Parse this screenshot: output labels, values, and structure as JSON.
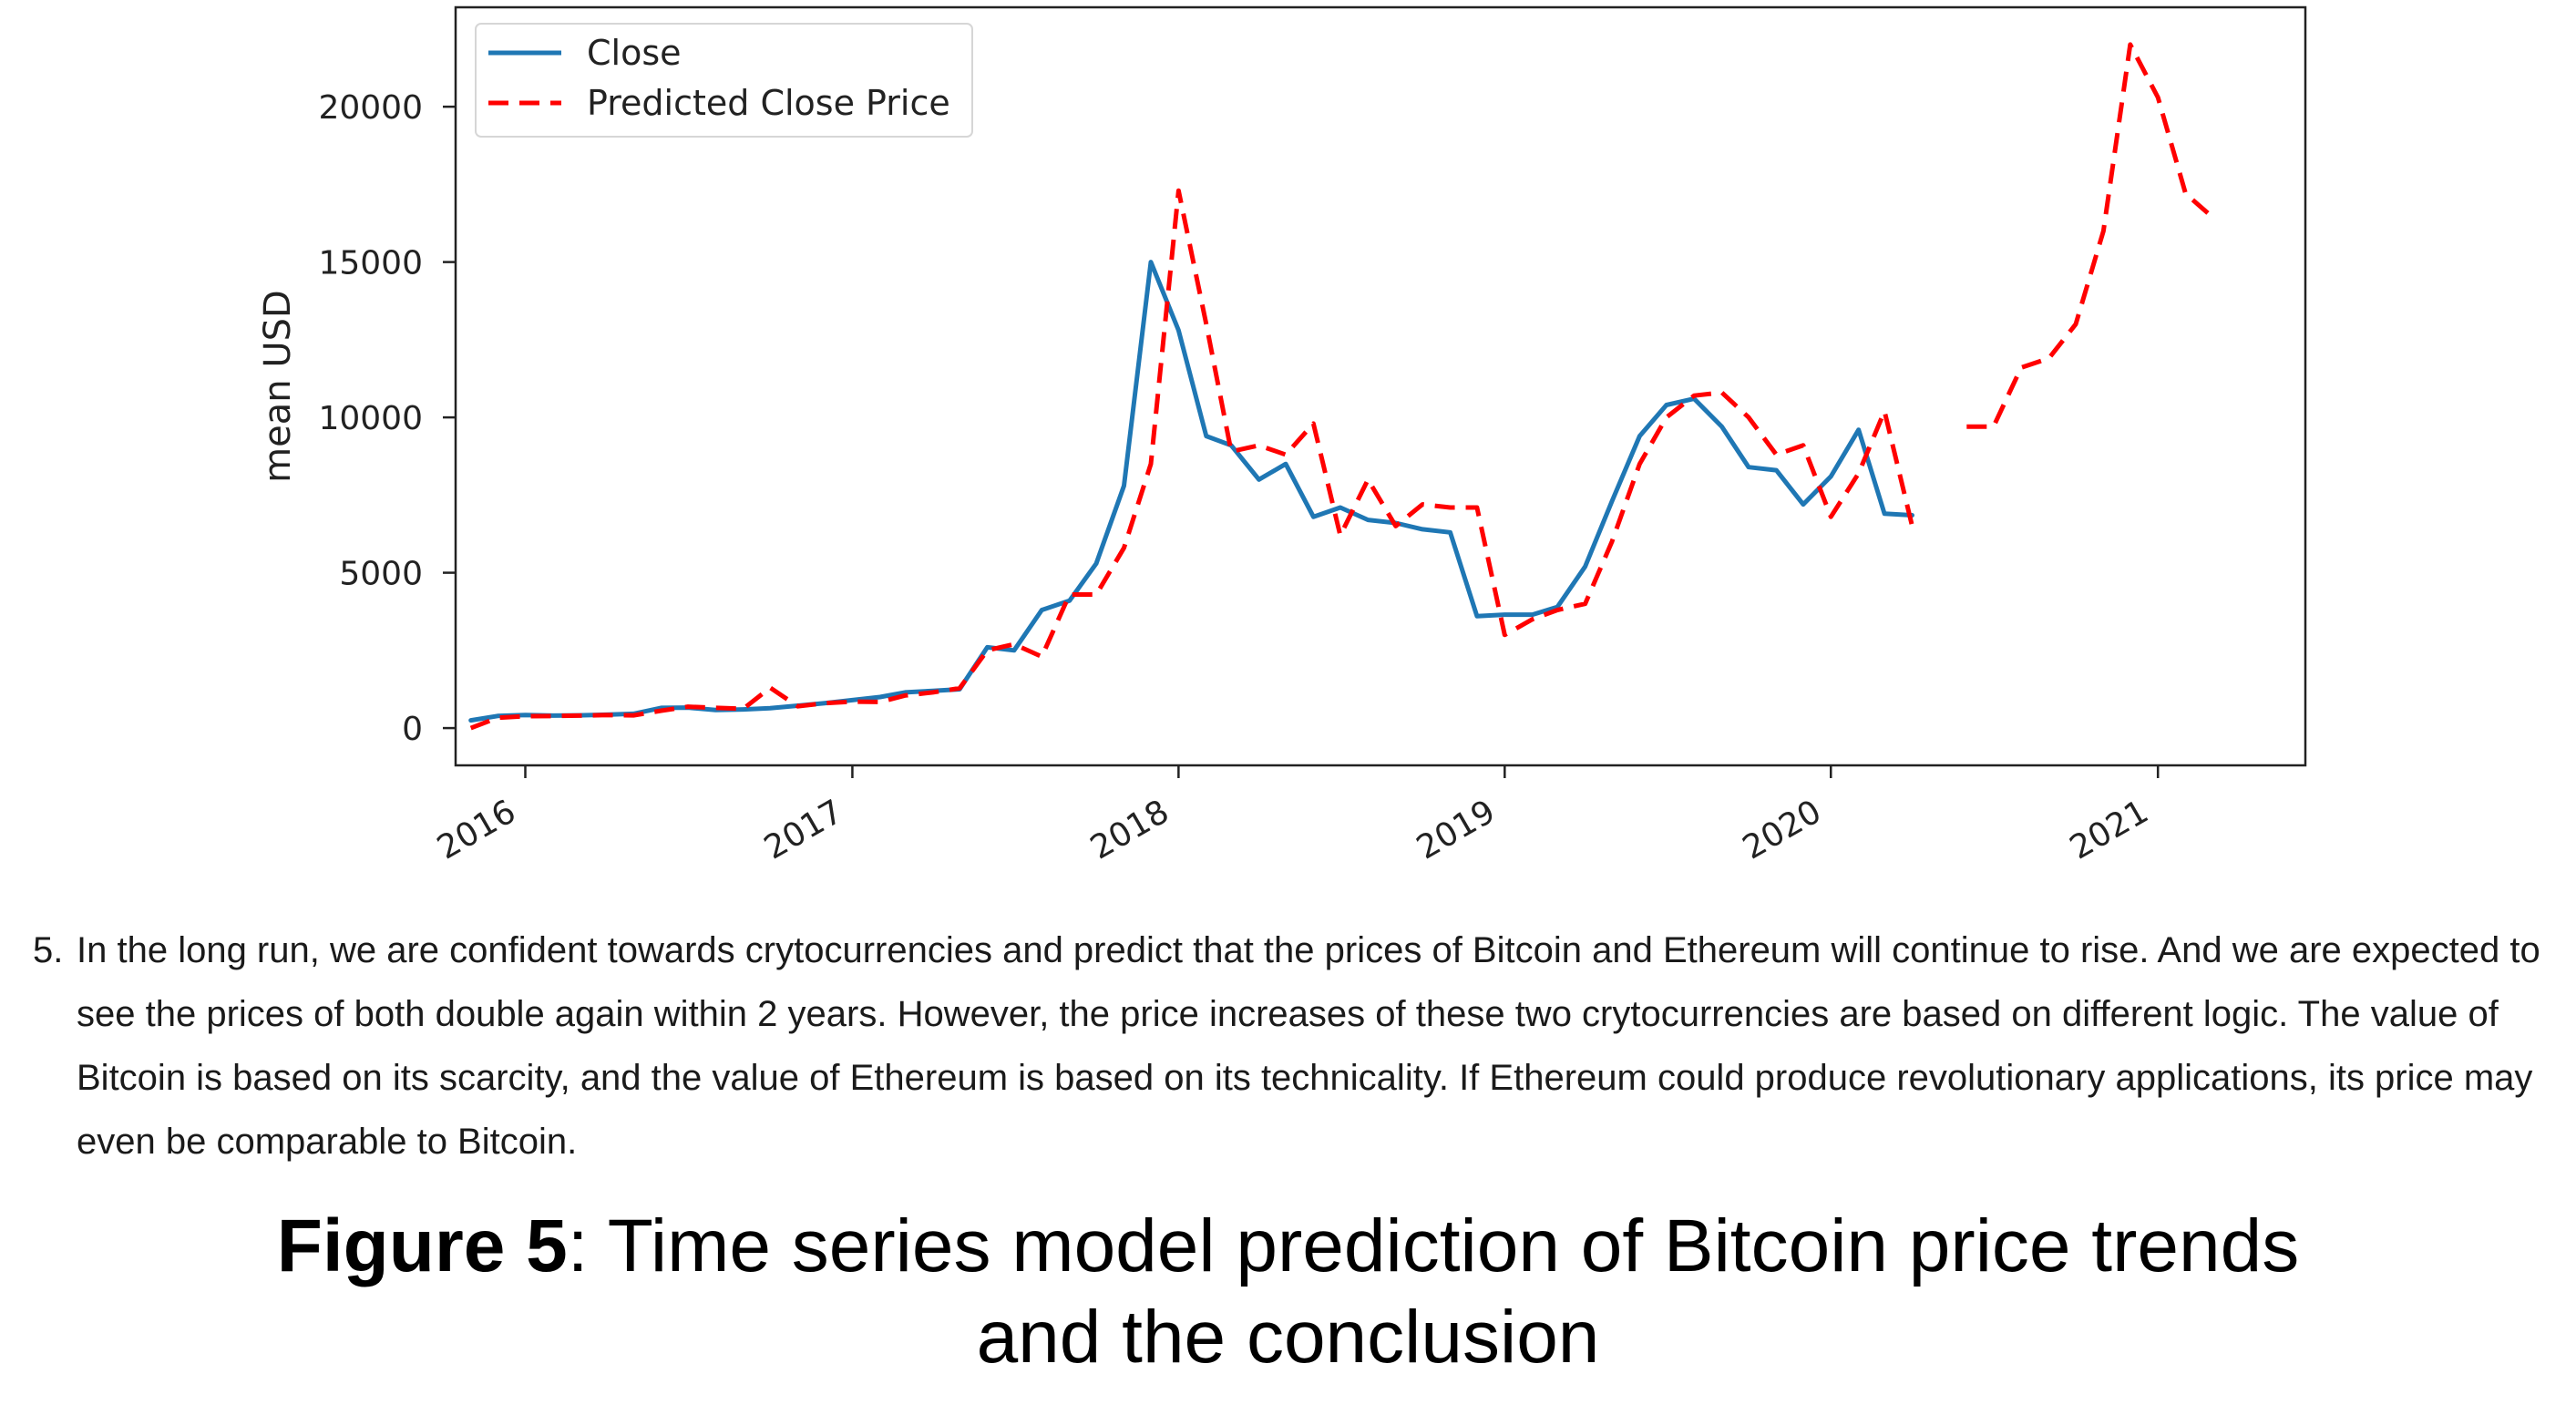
{
  "chart_data": {
    "type": "line",
    "title": "",
    "xlabel": "",
    "ylabel": "mean USD",
    "xlim": [
      "2015-10-15",
      "2021-06-15"
    ],
    "ylim": [
      -1200,
      23200
    ],
    "x_ticks": [
      "2016",
      "2017",
      "2018",
      "2019",
      "2020",
      "2021"
    ],
    "y_ticks": [
      0,
      5000,
      10000,
      15000,
      20000
    ],
    "grid": false,
    "legend": "top-left",
    "series": [
      {
        "name": "Close",
        "color": "#1f77b4",
        "style": "solid",
        "points": [
          [
            "2015-11-01",
            250
          ],
          [
            "2015-12-01",
            390
          ],
          [
            "2016-01-01",
            420
          ],
          [
            "2016-02-01",
            400
          ],
          [
            "2016-03-01",
            410
          ],
          [
            "2016-04-01",
            430
          ],
          [
            "2016-05-01",
            460
          ],
          [
            "2016-06-01",
            650
          ],
          [
            "2016-07-01",
            660
          ],
          [
            "2016-08-01",
            580
          ],
          [
            "2016-09-01",
            600
          ],
          [
            "2016-10-01",
            640
          ],
          [
            "2016-11-01",
            720
          ],
          [
            "2016-12-01",
            800
          ],
          [
            "2017-01-01",
            900
          ],
          [
            "2017-02-01",
            1000
          ],
          [
            "2017-03-01",
            1150
          ],
          [
            "2017-04-01",
            1200
          ],
          [
            "2017-05-01",
            1250
          ],
          [
            "2017-06-01",
            2600
          ],
          [
            "2017-07-01",
            2500
          ],
          [
            "2017-08-01",
            3800
          ],
          [
            "2017-09-01",
            4100
          ],
          [
            "2017-10-01",
            5300
          ],
          [
            "2017-11-01",
            7800
          ],
          [
            "2017-12-01",
            15000
          ],
          [
            "2018-01-01",
            12800
          ],
          [
            "2018-02-01",
            9400
          ],
          [
            "2018-03-01",
            9100
          ],
          [
            "2018-04-01",
            8000
          ],
          [
            "2018-05-01",
            8500
          ],
          [
            "2018-06-01",
            6800
          ],
          [
            "2018-07-01",
            7100
          ],
          [
            "2018-08-01",
            6700
          ],
          [
            "2018-09-01",
            6600
          ],
          [
            "2018-10-01",
            6400
          ],
          [
            "2018-11-01",
            6300
          ],
          [
            "2018-12-01",
            3600
          ],
          [
            "2019-01-01",
            3650
          ],
          [
            "2019-02-01",
            3650
          ],
          [
            "2019-03-01",
            3900
          ],
          [
            "2019-04-01",
            5200
          ],
          [
            "2019-05-01",
            7300
          ],
          [
            "2019-06-01",
            9400
          ],
          [
            "2019-07-01",
            10400
          ],
          [
            "2019-08-01",
            10600
          ],
          [
            "2019-09-01",
            9700
          ],
          [
            "2019-10-01",
            8400
          ],
          [
            "2019-11-01",
            8300
          ],
          [
            "2019-12-01",
            7200
          ],
          [
            "2020-01-01",
            8100
          ],
          [
            "2020-02-01",
            9600
          ],
          [
            "2020-03-01",
            6900
          ],
          [
            "2020-04-01",
            6850
          ]
        ]
      },
      {
        "name": "Predicted Close Price",
        "color": "#ff0000",
        "style": "dashed",
        "segments": [
          [
            [
              "2015-11-01",
              0
            ],
            [
              "2015-12-01",
              330
            ],
            [
              "2016-01-01",
              380
            ],
            [
              "2016-02-01",
              390
            ],
            [
              "2016-03-01",
              400
            ],
            [
              "2016-04-01",
              420
            ],
            [
              "2016-05-01",
              410
            ],
            [
              "2016-06-01",
              560
            ],
            [
              "2016-07-01",
              690
            ],
            [
              "2016-08-01",
              650
            ],
            [
              "2016-09-01",
              620
            ],
            [
              "2016-10-01",
              1300
            ],
            [
              "2016-11-01",
              700
            ],
            [
              "2016-12-01",
              800
            ],
            [
              "2017-01-01",
              850
            ],
            [
              "2017-02-01",
              840
            ],
            [
              "2017-03-01",
              1050
            ],
            [
              "2017-04-01",
              1150
            ],
            [
              "2017-05-01",
              1280
            ],
            [
              "2017-06-01",
              2500
            ],
            [
              "2017-07-01",
              2700
            ],
            [
              "2017-08-01",
              2300
            ],
            [
              "2017-09-01",
              4300
            ],
            [
              "2017-10-01",
              4300
            ],
            [
              "2017-11-01",
              5800
            ],
            [
              "2017-12-01",
              8500
            ],
            [
              "2018-01-01",
              17300
            ],
            [
              "2018-02-01",
              13000
            ],
            [
              "2018-03-01",
              8900
            ],
            [
              "2018-04-01",
              9100
            ],
            [
              "2018-05-01",
              8800
            ],
            [
              "2018-06-01",
              9800
            ],
            [
              "2018-07-01",
              6200
            ],
            [
              "2018-08-01",
              8000
            ],
            [
              "2018-09-01",
              6500
            ],
            [
              "2018-10-01",
              7200
            ],
            [
              "2018-11-01",
              7100
            ],
            [
              "2018-12-01",
              7100
            ],
            [
              "2019-01-01",
              3000
            ],
            [
              "2019-02-01",
              3500
            ],
            [
              "2019-03-01",
              3800
            ],
            [
              "2019-04-01",
              4000
            ],
            [
              "2019-05-01",
              6000
            ],
            [
              "2019-06-01",
              8500
            ],
            [
              "2019-07-01",
              10000
            ],
            [
              "2019-08-01",
              10700
            ],
            [
              "2019-09-01",
              10800
            ],
            [
              "2019-10-01",
              10000
            ],
            [
              "2019-11-01",
              8800
            ],
            [
              "2019-12-01",
              9100
            ],
            [
              "2020-01-01",
              6800
            ],
            [
              "2020-02-01",
              8200
            ],
            [
              "2020-03-01",
              10200
            ],
            [
              "2020-04-01",
              6500
            ]
          ],
          [
            [
              "2020-06-01",
              9700
            ],
            [
              "2020-07-01",
              9700
            ],
            [
              "2020-08-01",
              11600
            ],
            [
              "2020-09-01",
              11900
            ],
            [
              "2020-10-01",
              13000
            ],
            [
              "2020-11-01",
              16000
            ],
            [
              "2020-12-01",
              22000
            ],
            [
              "2021-01-01",
              20300
            ],
            [
              "2021-02-01",
              17200
            ],
            [
              "2021-03-01",
              16500
            ]
          ]
        ]
      }
    ]
  },
  "conclusion": {
    "number": "5.",
    "text": "In the long run, we are confident towards crytocurrencies and predict that the prices of Bitcoin and Ethereum will continue to rise. And we are expected to see the prices of both double again within 2 years. However, the price increases of these two crytocurrencies are based on different logic. The value of Bitcoin is based on its scarcity, and the value of Ethereum is based on its technicality. If Ethereum could produce revolutionary applications, its price may even be comparable to Bitcoin."
  },
  "caption": {
    "label": "Figure 5",
    "text_line1": ": Time series model prediction of Bitcoin price trends",
    "text_line2": "and the conclusion"
  }
}
